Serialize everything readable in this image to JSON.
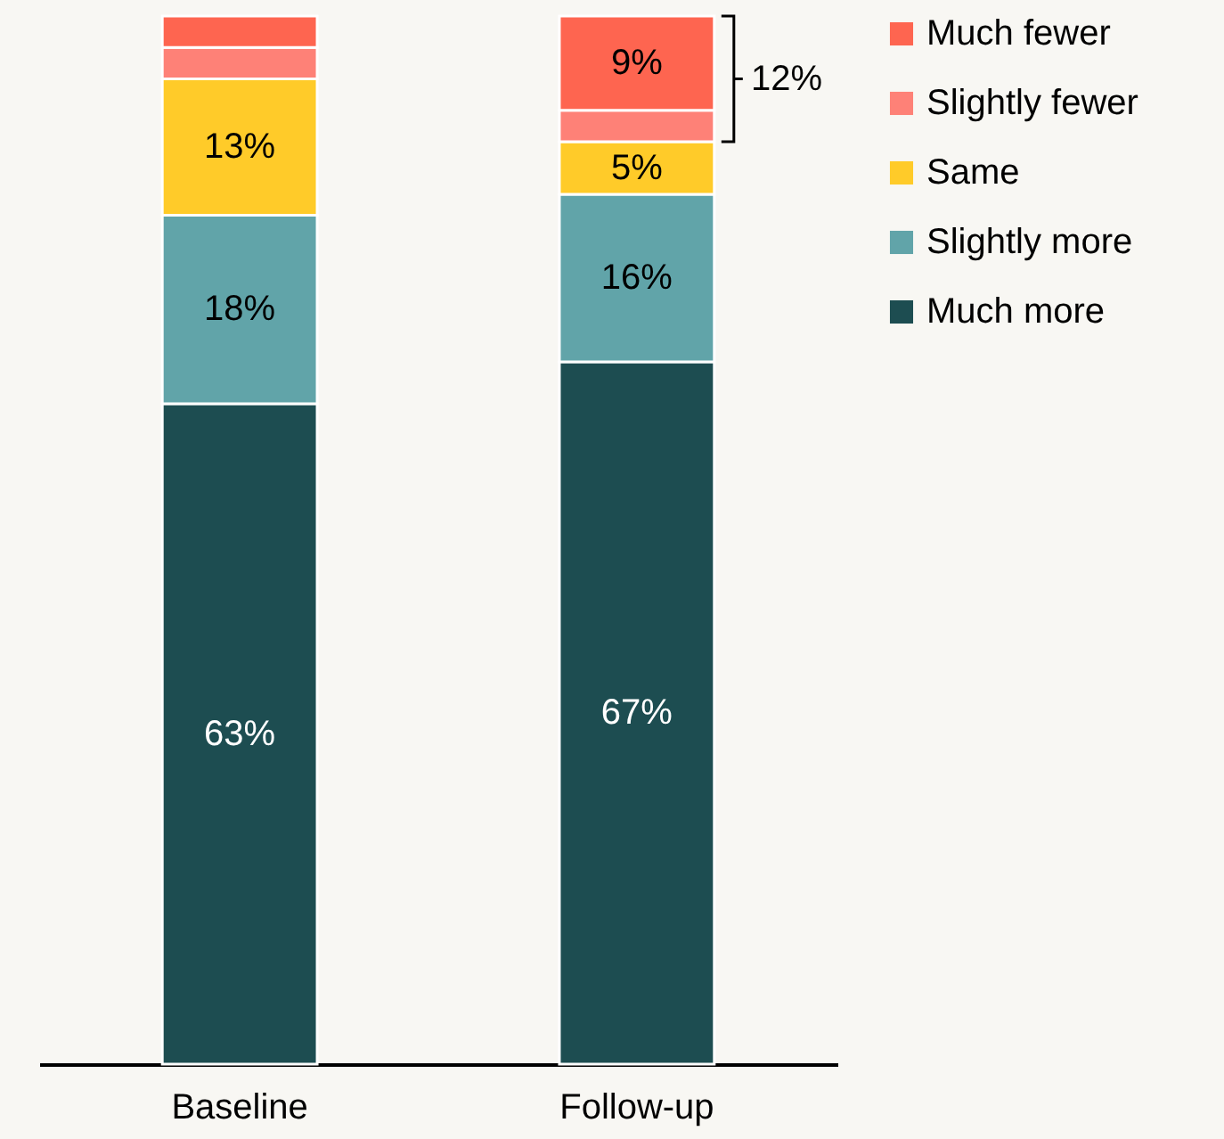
{
  "chart_data": {
    "type": "bar",
    "stacked": true,
    "categories": [
      "Baseline",
      "Follow-up"
    ],
    "series": [
      {
        "name": "Much more",
        "color": "#1d4d51",
        "values": [
          63,
          67
        ],
        "value_labels": [
          "63%",
          "67%"
        ]
      },
      {
        "name": "Slightly more",
        "color": "#61a4a9",
        "values": [
          18,
          16
        ],
        "value_labels": [
          "18%",
          "16%"
        ]
      },
      {
        "name": "Same",
        "color": "#ffcb29",
        "values": [
          13,
          5
        ],
        "value_labels": [
          "13%",
          "5%"
        ]
      },
      {
        "name": "Slightly fewer",
        "color": "#fe8177",
        "values": [
          3,
          3
        ],
        "value_labels": [
          null,
          null
        ]
      },
      {
        "name": "Much fewer",
        "color": "#fe6550",
        "values": [
          3,
          9
        ],
        "value_labels": [
          null,
          "9%"
        ]
      }
    ],
    "annotations": [
      "12%"
    ],
    "legend": "top right"
  }
}
